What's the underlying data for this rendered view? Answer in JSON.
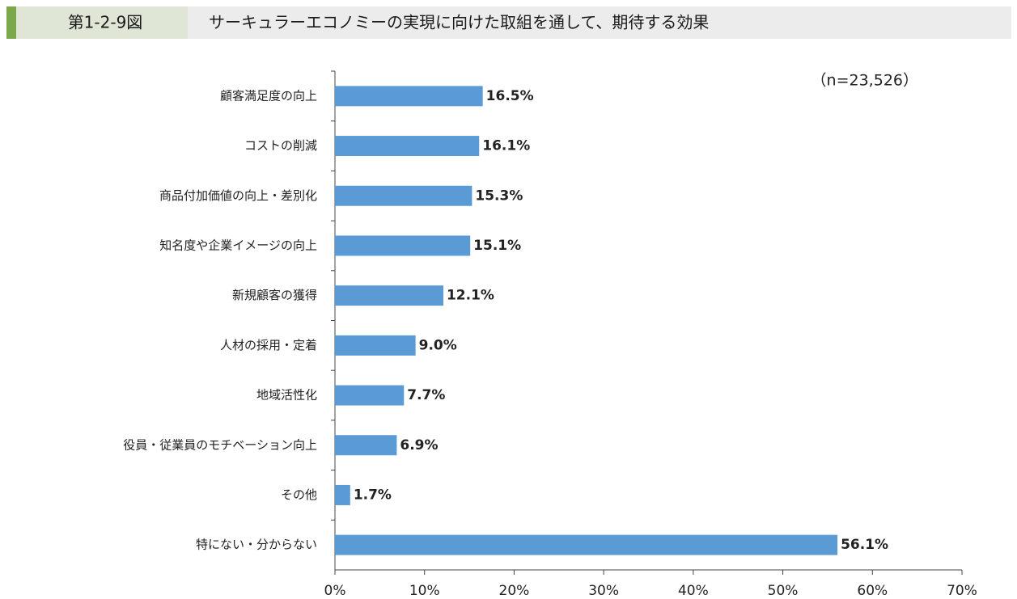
{
  "chart_data": {
    "type": "barh",
    "figure_label": "第1-2-9図",
    "title": "サーキュラーエコノミーの実現に向けた取組を通して、期待する効果",
    "annotation": "（n=23,526）",
    "categories": [
      "顧客満足度の向上",
      "コストの削減",
      "商品付加価値の向上・差別化",
      "知名度や企業イメージの向上",
      "新規顧客の獲得",
      "人材の採用・定着",
      "地域活性化",
      "役員・従業員のモチベーション向上",
      "その他",
      "特にない・分からない"
    ],
    "values": [
      16.5,
      16.1,
      15.3,
      15.1,
      12.1,
      9.0,
      7.7,
      6.9,
      1.7,
      56.1
    ],
    "value_labels": [
      "16.5%",
      "16.1%",
      "15.3%",
      "15.1%",
      "12.1%",
      "9.0%",
      "7.7%",
      "6.9%",
      "1.7%",
      "56.1%"
    ],
    "color": "#5b9bd5",
    "xlim": [
      0,
      70
    ],
    "xticks": [
      {
        "value": 0,
        "label": "0%"
      },
      {
        "value": 10,
        "label": "10%"
      },
      {
        "value": 20,
        "label": "20%"
      },
      {
        "value": 30,
        "label": "30%"
      },
      {
        "value": 40,
        "label": "40%"
      },
      {
        "value": 50,
        "label": "50%"
      },
      {
        "value": 60,
        "label": "60%"
      },
      {
        "value": 70,
        "label": "70%"
      }
    ],
    "grid": false
  }
}
